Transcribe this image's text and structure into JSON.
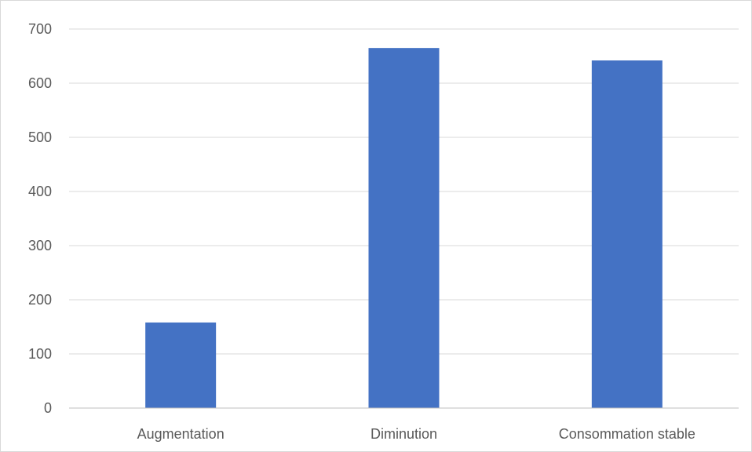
{
  "chart_data": {
    "type": "bar",
    "title": "",
    "xlabel": "",
    "ylabel": "",
    "categories": [
      "Augmentation",
      "Diminution",
      "Consommation stable"
    ],
    "series": [
      {
        "values": [
          158,
          665,
          642
        ],
        "color": "#4472c4"
      }
    ],
    "ylim": [
      0,
      700
    ],
    "yticks": [
      0,
      100,
      200,
      300,
      400,
      500,
      600,
      700
    ],
    "grid": true,
    "legend": "none",
    "colors": {
      "grid": "#d9d9d9",
      "axis": "#bfbfbf",
      "text": "#595959"
    }
  }
}
